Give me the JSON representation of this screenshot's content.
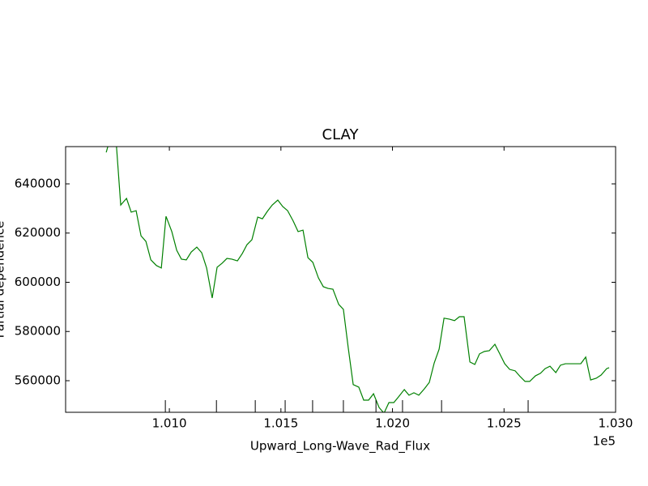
{
  "chart_data": {
    "type": "line",
    "title": "CLAY",
    "xlabel": "Upward_Long-Wave_Rad_Flux",
    "ylabel": "Partial dependence",
    "x_offset_label": "1e5",
    "xlim": [
      100535,
      103000
    ],
    "ylim": [
      547160,
      655140
    ],
    "xticks": [
      {
        "value": 101000,
        "label": "1.010"
      },
      {
        "value": 101500,
        "label": "1.015"
      },
      {
        "value": 102000,
        "label": "1.020"
      },
      {
        "value": 102500,
        "label": "1.025"
      },
      {
        "value": 103000,
        "label": "1.030"
      }
    ],
    "yticks": [
      560000,
      580000,
      600000,
      620000,
      640000
    ],
    "deciles": [
      100982,
      101211,
      101385,
      101519,
      101642,
      101780,
      101926,
      102045,
      102220,
      102608
    ],
    "series": [
      {
        "color": "#008000",
        "x": [
          100717,
          100739,
          100760,
          100782,
          100808,
          100829,
          100851,
          100873,
          100895,
          100917,
          100942,
          100964,
          100985,
          101011,
          101033,
          101054,
          101076,
          101098,
          101123,
          101145,
          101167,
          101192,
          101214,
          101236,
          101258,
          101280,
          101305,
          101327,
          101348,
          101370,
          101396,
          101417,
          101439,
          101461,
          101486,
          101508,
          101530,
          101555,
          101577,
          101599,
          101621,
          101643,
          101668,
          101690,
          101711,
          101733,
          101759,
          101780,
          101802,
          101824,
          101849,
          101871,
          101893,
          101915,
          101940,
          101962,
          101984,
          102006,
          102027,
          102053,
          102074,
          102096,
          102118,
          102143,
          102165,
          102187,
          102209,
          102231,
          102256,
          102278,
          102300,
          102321,
          102347,
          102369,
          102390,
          102412,
          102434,
          102459,
          102481,
          102503,
          102525,
          102550,
          102572,
          102594,
          102615,
          102641,
          102663,
          102684,
          102706,
          102732,
          102753,
          102775,
          102797,
          102823,
          102844,
          102866,
          102888,
          102913,
          102935,
          102960,
          102971
        ],
        "values": [
          652800,
          660000,
          659000,
          631400,
          634100,
          628500,
          629100,
          618900,
          616600,
          609100,
          606800,
          605800,
          626800,
          620600,
          613000,
          609400,
          609100,
          612300,
          614300,
          612000,
          605800,
          593600,
          606100,
          607700,
          609700,
          609400,
          608700,
          611700,
          615300,
          617300,
          626500,
          625800,
          628800,
          631400,
          633400,
          630800,
          629100,
          624900,
          620600,
          621200,
          610000,
          608100,
          601800,
          598200,
          597500,
          597200,
          591000,
          589000,
          573200,
          558400,
          557400,
          552100,
          552100,
          554700,
          549100,
          546800,
          551100,
          551100,
          553400,
          556400,
          554100,
          555100,
          554100,
          556700,
          559300,
          567200,
          572800,
          585400,
          585000,
          584400,
          586000,
          586000,
          567600,
          566600,
          570900,
          571900,
          572200,
          574800,
          570900,
          566900,
          564600,
          564000,
          561700,
          559700,
          559700,
          562000,
          563000,
          564900,
          565900,
          563300,
          566300,
          566900,
          566900,
          566900,
          566900,
          569600,
          560300,
          561000,
          562300,
          564900,
          565300
        ]
      }
    ]
  }
}
